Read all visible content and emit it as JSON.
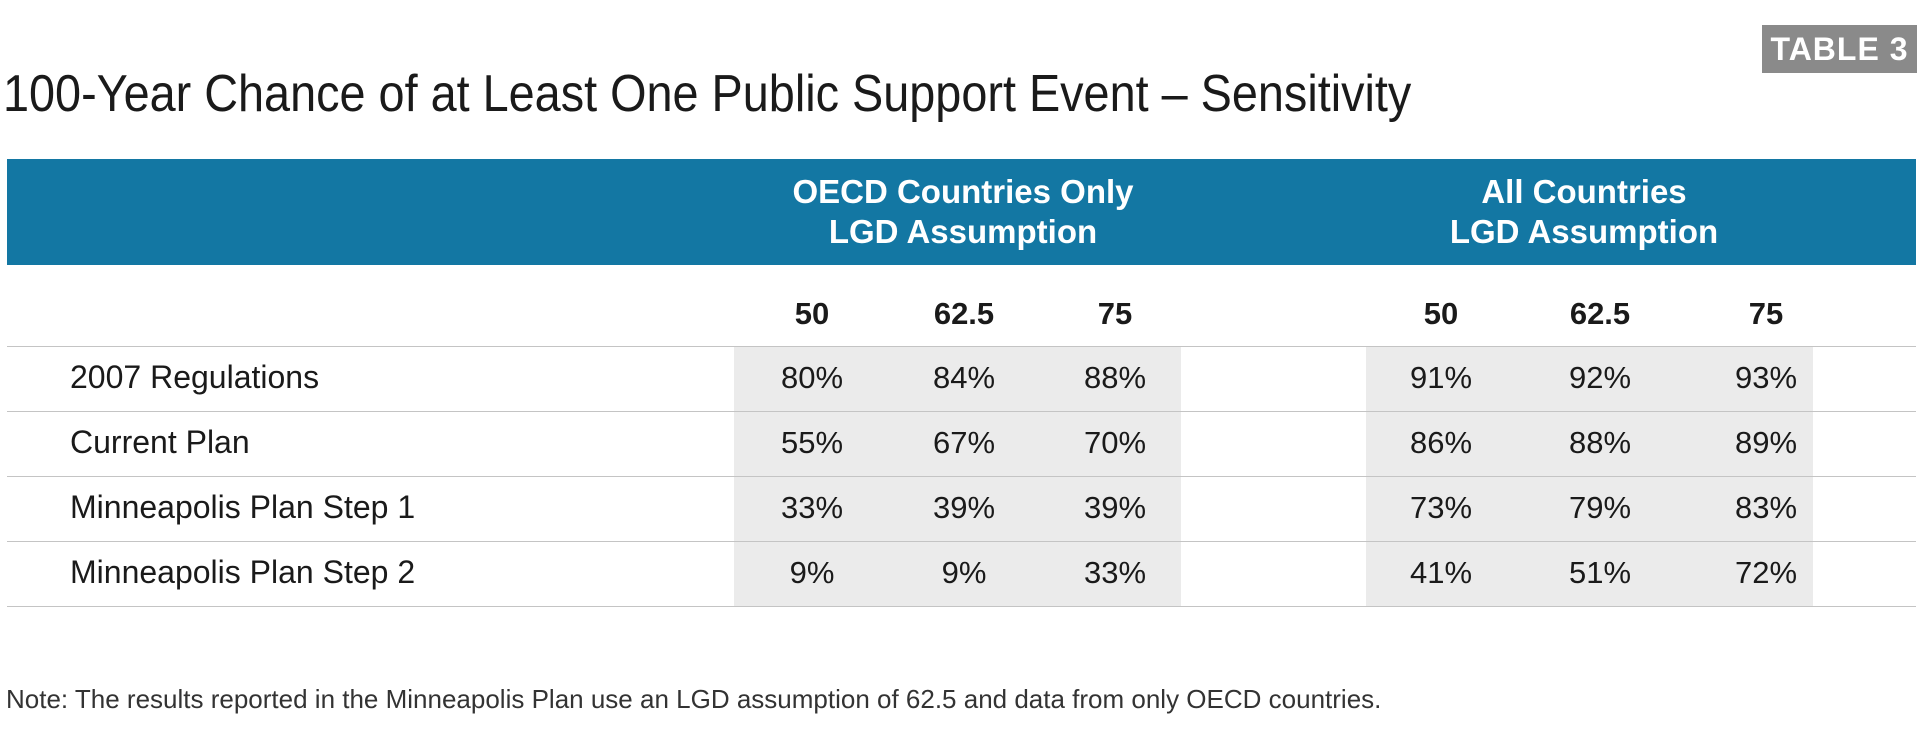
{
  "badge": "TABLE 3",
  "title": "100-Year Chance of at Least One Public Support Event – Sensitivity",
  "groups": [
    {
      "line1": "OECD Countries Only",
      "line2": "LGD Assumption"
    },
    {
      "line1": "All Countries",
      "line2": "LGD Assumption"
    }
  ],
  "columns": [
    "50",
    "62.5",
    "75",
    "50",
    "62.5",
    "75"
  ],
  "rows": [
    {
      "label": "2007 Regulations",
      "values": [
        "80%",
        "84%",
        "88%",
        "91%",
        "92%",
        "93%"
      ]
    },
    {
      "label": "Current Plan",
      "values": [
        "55%",
        "67%",
        "70%",
        "86%",
        "88%",
        "89%"
      ]
    },
    {
      "label": "Minneapolis Plan Step 1",
      "values": [
        "33%",
        "39%",
        "39%",
        "73%",
        "79%",
        "83%"
      ]
    },
    {
      "label": "Minneapolis Plan Step 2",
      "values": [
        "9%",
        "9%",
        "33%",
        "41%",
        "51%",
        "72%"
      ]
    }
  ],
  "note": "Note: The results reported in the Minneapolis Plan use an LGD assumption of 62.5 and data from only OECD countries."
}
